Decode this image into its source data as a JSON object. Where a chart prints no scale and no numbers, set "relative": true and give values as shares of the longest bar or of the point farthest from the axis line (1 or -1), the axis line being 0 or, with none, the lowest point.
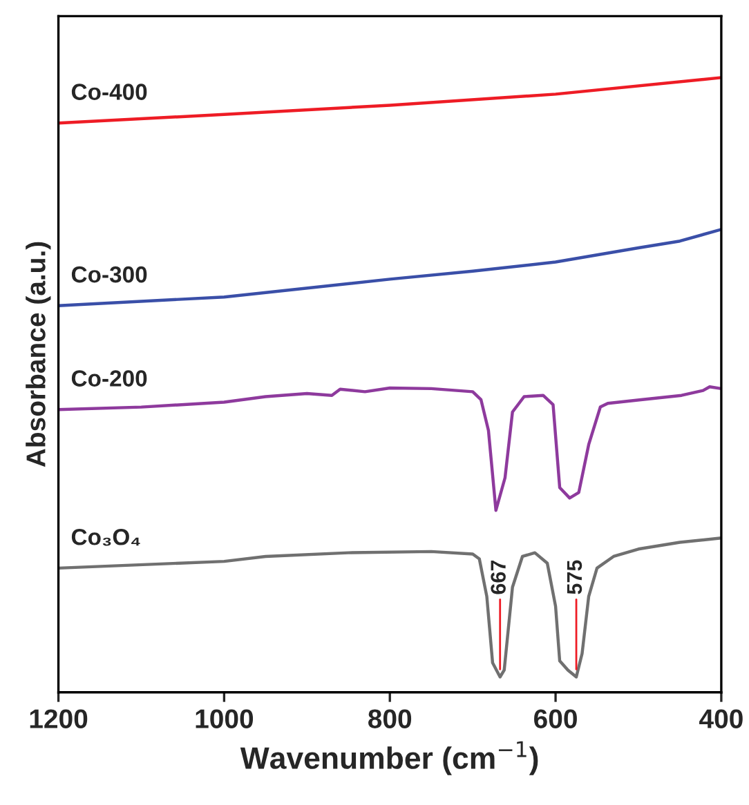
{
  "chart_data": {
    "type": "line",
    "relative": true,
    "xlabel": "Wavenumber (cm$^{−1}$)",
    "ylabel": "Absorbance (a.u.)",
    "xlim": [
      1200,
      400
    ],
    "xticks": [
      1200,
      1000,
      800,
      600,
      400
    ],
    "legend": false,
    "grid": false,
    "series": [
      {
        "name": "Co-400",
        "color": "#ee1c25",
        "x": [
          1200,
          1000,
          800,
          600,
          400
        ],
        "values": [
          0.926,
          0.94,
          0.955,
          0.973,
          1.0
        ]
      },
      {
        "name": "Co-300",
        "color": "#3a4fa8",
        "x": [
          1200,
          1000,
          800,
          700,
          600,
          500,
          450,
          400
        ],
        "values": [
          0.629,
          0.643,
          0.672,
          0.685,
          0.7,
          0.723,
          0.734,
          0.753
        ]
      },
      {
        "name": "Co-200",
        "color": "#8e3a9d",
        "x": [
          1200,
          1100,
          1000,
          950,
          900,
          870,
          860,
          830,
          800,
          750,
          700,
          690,
          681,
          672,
          661,
          652,
          638,
          615,
          603,
          595,
          583,
          572,
          560,
          546,
          537,
          497,
          448,
          422,
          414,
          400
        ],
        "values": [
          0.46,
          0.464,
          0.472,
          0.481,
          0.486,
          0.483,
          0.493,
          0.489,
          0.495,
          0.494,
          0.489,
          0.476,
          0.426,
          0.296,
          0.349,
          0.456,
          0.481,
          0.483,
          0.468,
          0.333,
          0.316,
          0.325,
          0.403,
          0.464,
          0.47,
          0.476,
          0.483,
          0.491,
          0.497,
          0.494
        ]
      },
      {
        "name": "Co₃O₄",
        "color": "#707070",
        "x": [
          1200,
          1000,
          950,
          850,
          750,
          700,
          692,
          683,
          676,
          667,
          662,
          652,
          640,
          625,
          610,
          600,
          595,
          585,
          575,
          568,
          560,
          550,
          530,
          500,
          450,
          400
        ],
        "values": [
          0.202,
          0.213,
          0.221,
          0.227,
          0.229,
          0.225,
          0.217,
          0.156,
          0.048,
          0.025,
          0.036,
          0.171,
          0.221,
          0.227,
          0.21,
          0.14,
          0.051,
          0.036,
          0.025,
          0.063,
          0.156,
          0.202,
          0.221,
          0.233,
          0.244,
          0.251
        ]
      }
    ],
    "annotations": [
      {
        "text": "667",
        "x": 667,
        "y": 0.025
      },
      {
        "text": "575",
        "x": 575,
        "y": 0.025
      }
    ]
  }
}
